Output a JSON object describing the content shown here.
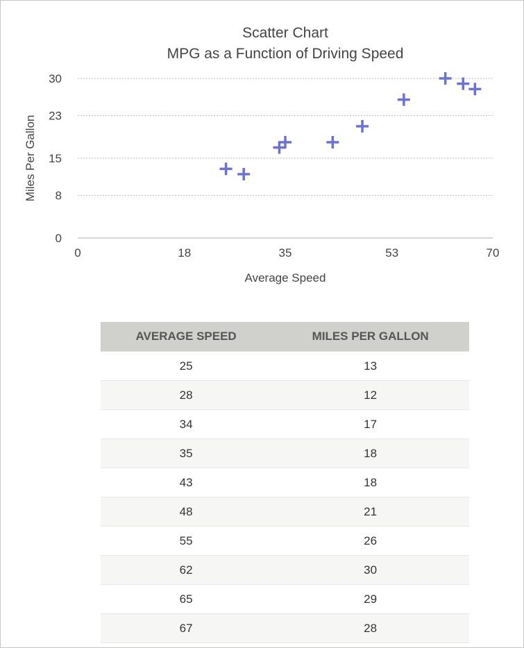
{
  "chart_data": {
    "type": "scatter",
    "title": "Scatter Chart",
    "subtitle": "MPG as a Function of Driving Speed",
    "xlabel": "Average Speed",
    "ylabel": "Miles Per Gallon",
    "xlim": [
      0,
      70
    ],
    "ylim": [
      0,
      30
    ],
    "xticks": [
      "0",
      "18",
      "35",
      "53",
      "70"
    ],
    "yticks": [
      "0",
      "8",
      "15",
      "23",
      "30"
    ],
    "grid": "horizontal-dotted",
    "marker": "plus",
    "color": "#6b72d0",
    "x": [
      25,
      28,
      34,
      35,
      43,
      48,
      55,
      62,
      65,
      67
    ],
    "y": [
      13,
      12,
      17,
      18,
      18,
      21,
      26,
      30,
      29,
      28
    ]
  },
  "table": {
    "headers": [
      "AVERAGE SPEED",
      "MILES PER GALLON"
    ],
    "rows": [
      [
        "25",
        "13"
      ],
      [
        "28",
        "12"
      ],
      [
        "34",
        "17"
      ],
      [
        "35",
        "18"
      ],
      [
        "43",
        "18"
      ],
      [
        "48",
        "21"
      ],
      [
        "55",
        "26"
      ],
      [
        "62",
        "30"
      ],
      [
        "65",
        "29"
      ],
      [
        "67",
        "28"
      ]
    ]
  }
}
